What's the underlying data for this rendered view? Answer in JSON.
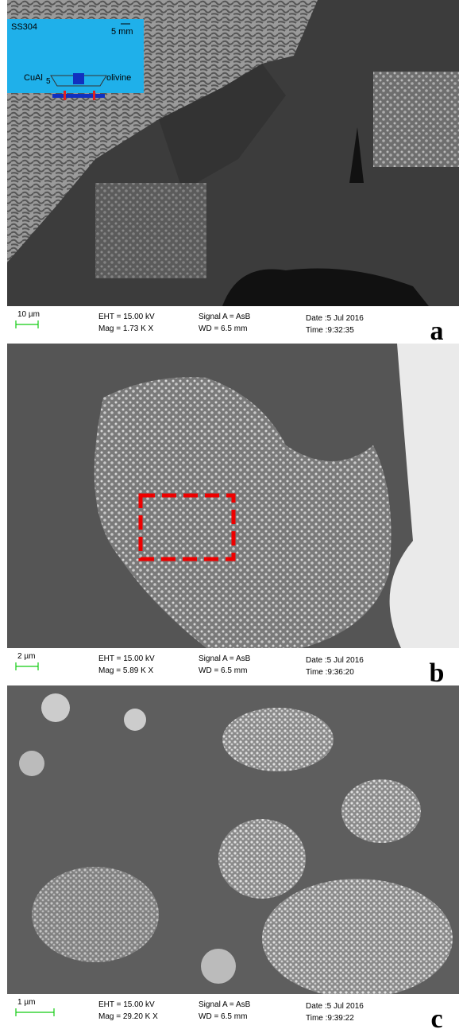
{
  "inset": {
    "sample": "SS304",
    "scale": "5 mm",
    "left": "CuAl",
    "left_sub": "5",
    "right": "olivine"
  },
  "panels": [
    {
      "label": "a",
      "scale": "10 µm",
      "eht": "EHT = 15.00 kV",
      "mag": "Mag =  1.73 K X",
      "signal": "Signal A = AsB",
      "wd": "WD = 6.5 mm",
      "date": "Date :5 Jul 2016",
      "time": "Time :9:32:35"
    },
    {
      "label": "b",
      "scale": "2 µm",
      "eht": "EHT = 15.00 kV",
      "mag": "Mag =  5.89 K X",
      "signal": "Signal A = AsB",
      "wd": "WD = 6.5 mm",
      "date": "Date :5 Jul 2016",
      "time": "Time :9:36:20"
    },
    {
      "label": "c",
      "scale": "1 µm",
      "eht": "EHT = 15.00 kV",
      "mag": "Mag = 29.20 K X",
      "signal": "Signal A = AsB",
      "wd": "WD = 6.5 mm",
      "date": "Date :5 Jul 2016",
      "time": "Time :9:39:22"
    }
  ]
}
